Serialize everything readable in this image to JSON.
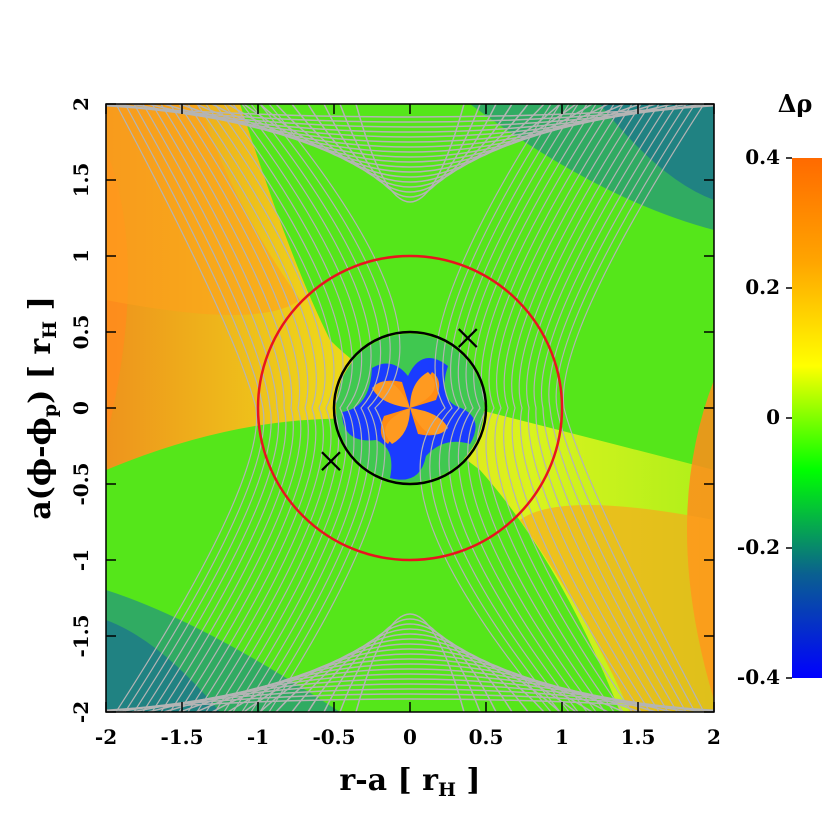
{
  "chart_data": {
    "type": "heatmap",
    "xlabel": {
      "main": "r-a [ r",
      "sub": "H",
      "tail": " ]"
    },
    "ylabel": {
      "main": "a(ϕ-ϕ",
      "sub1": "p",
      "mid": ") [ r",
      "sub2": "H",
      "tail": " ]"
    },
    "xlim": [
      -2,
      2
    ],
    "ylim": [
      -2,
      2
    ],
    "x_ticks": [
      {
        "value": -2,
        "label": "-2"
      },
      {
        "value": -1.5,
        "label": "-1.5"
      },
      {
        "value": -1,
        "label": "-1"
      },
      {
        "value": -0.5,
        "label": "-0.5"
      },
      {
        "value": 0,
        "label": "0"
      },
      {
        "value": 0.5,
        "label": "0.5"
      },
      {
        "value": 1,
        "label": "1"
      },
      {
        "value": 1.5,
        "label": "1.5"
      },
      {
        "value": 2,
        "label": "2"
      }
    ],
    "y_ticks": [
      {
        "value": -2,
        "label": "-2"
      },
      {
        "value": -1.5,
        "label": "-1.5"
      },
      {
        "value": -1,
        "label": "-1"
      },
      {
        "value": -0.5,
        "label": "-0.5"
      },
      {
        "value": 0,
        "label": "0"
      },
      {
        "value": 0.5,
        "label": "0.5"
      },
      {
        "value": 1,
        "label": "1"
      },
      {
        "value": 1.5,
        "label": "1.5"
      },
      {
        "value": 2,
        "label": "2"
      }
    ],
    "colorbar": {
      "title": "Δρ",
      "range": [
        -0.4,
        0.4
      ],
      "ticks": [
        {
          "value": 0.4,
          "label": "0.4"
        },
        {
          "value": 0.2,
          "label": "0.2"
        },
        {
          "value": 0,
          "label": "0"
        },
        {
          "value": -0.2,
          "label": "-0.2"
        },
        {
          "value": -0.4,
          "label": "-0.4"
        }
      ],
      "palette": [
        "#ff6a00",
        "#ffa500",
        "#ffff00",
        "#00ff00",
        "#0a6090",
        "#0000ff"
      ]
    },
    "circles": [
      {
        "center": [
          0,
          0
        ],
        "radius": 1.0,
        "color": "#e8141e"
      },
      {
        "center": [
          0,
          0
        ],
        "radius": 0.5,
        "color": "#000000"
      }
    ],
    "markers": [
      {
        "x": 0.38,
        "y": 0.46,
        "symbol": "x"
      },
      {
        "x": -0.52,
        "y": -0.35,
        "symbol": "x"
      }
    ],
    "contour_color": "#b4b4b4"
  }
}
